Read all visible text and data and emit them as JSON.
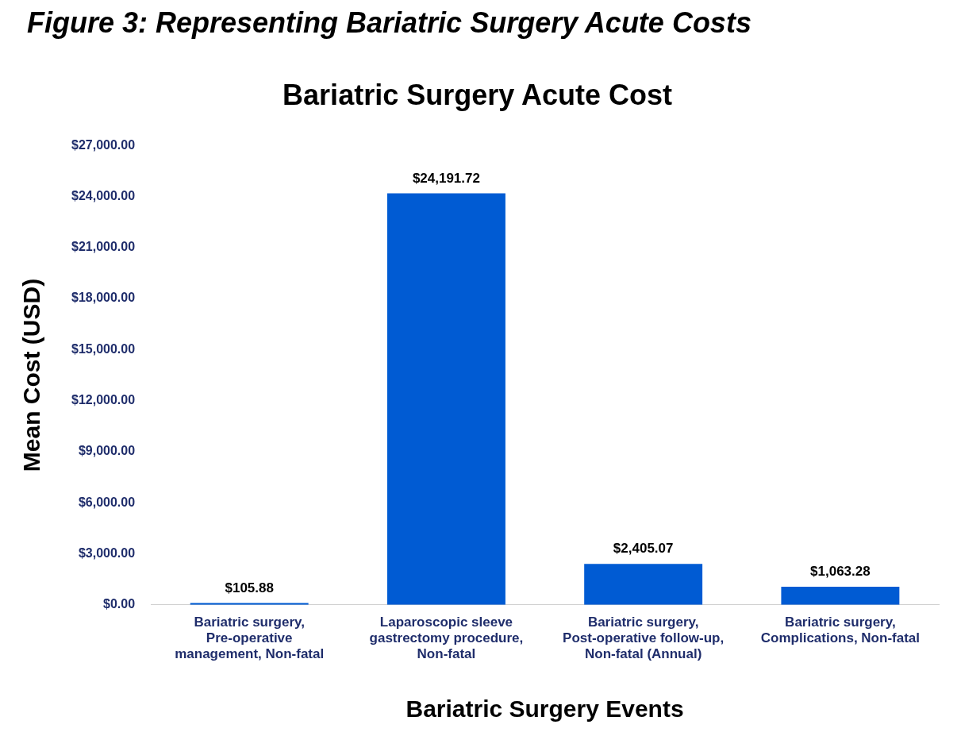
{
  "chart_data": {
    "type": "bar",
    "title": "Figure 3: Representing Bariatric Surgery Acute Costs",
    "subtitle": "Bariatric Surgery Acute Cost",
    "xlabel": "Bariatric Surgery Events",
    "ylabel": "Mean Cost (USD)",
    "categories": [
      "Bariatric surgery, Pre-operative management, Non-fatal",
      "Laparoscopic sleeve gastrectomy procedure, Non-fatal",
      "Bariatric surgery, Post-operative follow-up, Non-fatal (Annual)",
      "Bariatric surgery, Complications, Non-fatal"
    ],
    "values": [
      105.88,
      24191.72,
      2405.07,
      1063.28
    ],
    "value_labels": [
      "$105.88",
      "$24,191.72",
      "$2,405.07",
      "$1,063.28"
    ],
    "color": "#005bd3",
    "ylim": [
      0,
      27000
    ],
    "yticks": [
      {
        "value": 0,
        "label": "$0.00"
      },
      {
        "value": 3000,
        "label": "$3,000.00"
      },
      {
        "value": 6000,
        "label": "$6,000.00"
      },
      {
        "value": 9000,
        "label": "$9,000.00"
      },
      {
        "value": 12000,
        "label": "$12,000.00"
      },
      {
        "value": 15000,
        "label": "$15,000.00"
      },
      {
        "value": 18000,
        "label": "$18,000.00"
      },
      {
        "value": 21000,
        "label": "$21,000.00"
      },
      {
        "value": 24000,
        "label": "$24,000.00"
      },
      {
        "value": 27000,
        "label": "$27,000.00"
      }
    ],
    "grid": false,
    "legend": false
  }
}
